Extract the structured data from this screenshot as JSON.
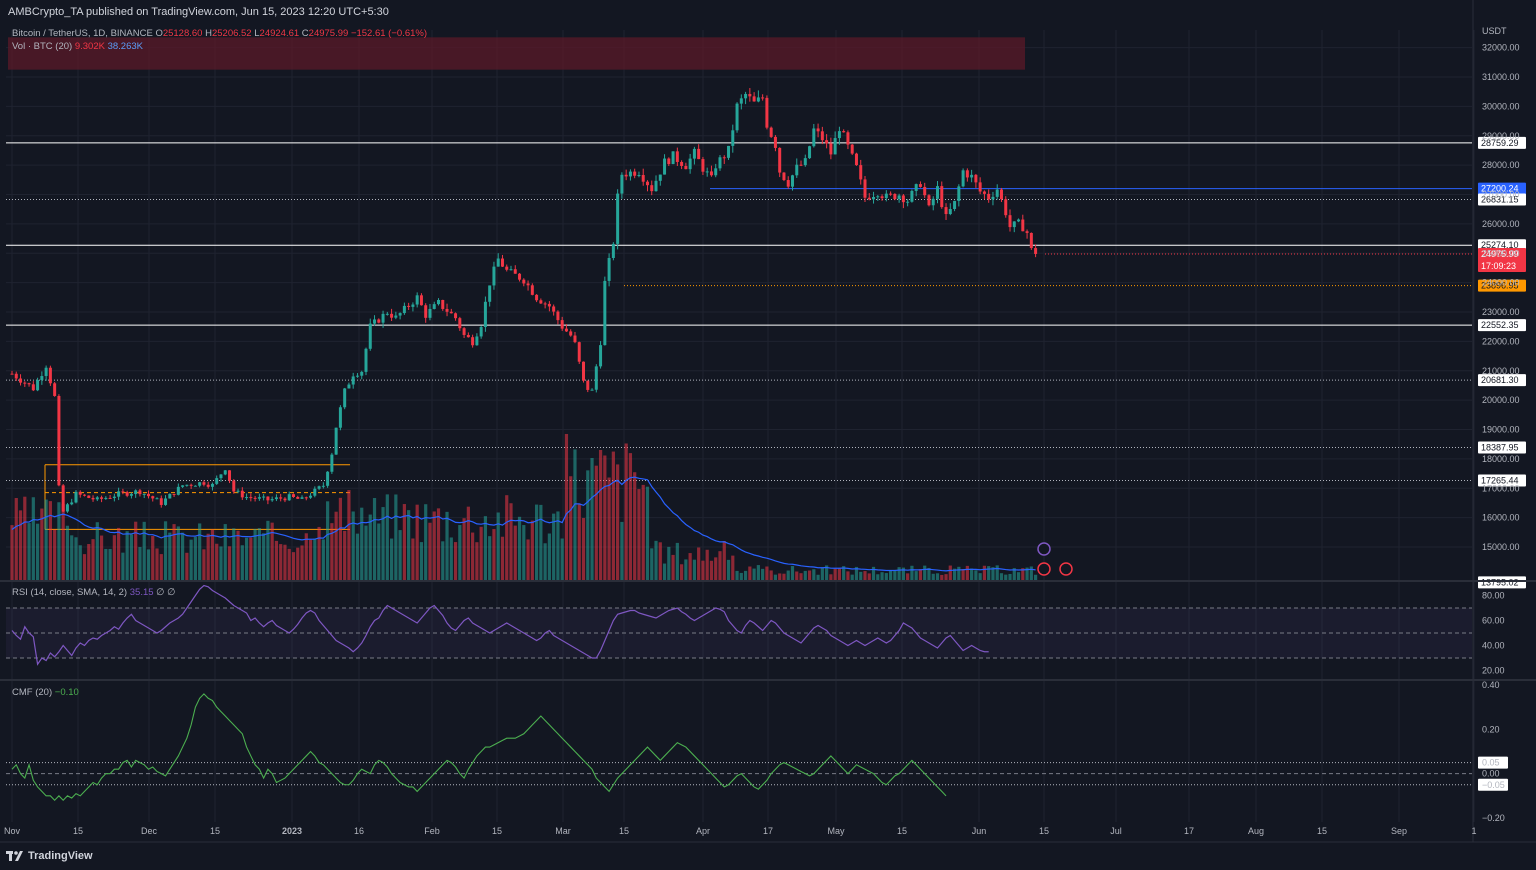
{
  "header": {
    "publisher": "AMBCrypto_TA published on TradingView.com, Jun 15, 2023 12:20 UTC+5:30"
  },
  "legend": {
    "symbol": "Bitcoin / TetherUS, 1D, BINANCE",
    "o_label": "O",
    "o_value": "25128.60",
    "h_label": "H",
    "h_value": "25206.52",
    "l_label": "L",
    "l_value": "24924.61",
    "c_label": "C",
    "c_value": "24975.99",
    "change": "−152.61 (−0.61%)",
    "vol_label": "Vol · BTC (20)",
    "vol_value": "9.302K",
    "vol_ma": "38.263K",
    "rsi_label": "RSI (14, close, SMA, 14, 2)",
    "rsi_value": "35.15",
    "rsi_extra1": "∅",
    "rsi_extra2": "∅",
    "cmf_label": "CMF (20)",
    "cmf_value": "−0.10"
  },
  "footer": {
    "brand": "TradingView"
  },
  "colors": {
    "background": "#131722",
    "up": "#26a69a",
    "down": "#f23645",
    "rsi_line": "#7e57c2",
    "cmf_line": "#4caf50",
    "volume_ma": "#2962ff",
    "level_blue": "#2962ff",
    "level_orange": "#ff9800",
    "supply_zone": "#5b1a28"
  },
  "chart_data": [
    {
      "type": "candlestick",
      "currency_label": "USDT",
      "y_ticks": [
        "32000.00",
        "31000.00",
        "30000.00",
        "29000.00",
        "28000.00",
        "27000.00",
        "26000.00",
        "25000.00",
        "24000.00",
        "23000.00",
        "22000.00",
        "21000.00",
        "20000.00",
        "19000.00",
        "18000.00",
        "17000.00",
        "16000.00",
        "15000.00"
      ],
      "x_ticks": [
        "Nov",
        "15",
        "Dec",
        "15",
        "2023",
        "16",
        "Feb",
        "15",
        "Mar",
        "15",
        "Apr",
        "17",
        "May",
        "15",
        "Jun",
        "15",
        "Jul",
        "17",
        "Aug",
        "15",
        "Sep",
        "1"
      ],
      "ylim": [
        13795.02,
        32500
      ],
      "levels": [
        {
          "value": 28759.29,
          "label": "28759.29",
          "style": "solid",
          "color": "#ffffff"
        },
        {
          "value": 27200.24,
          "label": "27200.24",
          "style": "solid",
          "color": "#2962ff"
        },
        {
          "value": 26831.15,
          "label": "26831.15",
          "style": "dotted",
          "color": "#b2b5be"
        },
        {
          "value": 25274.1,
          "label": "25274.10",
          "style": "solid",
          "color": "#ffffff"
        },
        {
          "value": 23896.95,
          "label": "23896.95",
          "style": "dotted",
          "color": "#ff9800"
        },
        {
          "value": 22552.35,
          "label": "22552.35",
          "style": "solid",
          "color": "#ffffff"
        },
        {
          "value": 20681.3,
          "label": "20681.30",
          "style": "dotted",
          "color": "#b2b5be"
        },
        {
          "value": 18387.95,
          "label": "18387.95",
          "style": "dotted",
          "color": "#b2b5be"
        },
        {
          "value": 17265.44,
          "label": "17265.44",
          "style": "dotted",
          "color": "#b2b5be"
        },
        {
          "value": 13795.02,
          "label": "13795.02",
          "style": "none",
          "color": "#b2b5be"
        }
      ],
      "last_price": {
        "value": 24975.99,
        "label": "24975.99",
        "countdown": "17:09:23"
      },
      "supply_zone": [
        31250,
        32350
      ],
      "range_box": {
        "top": 17800,
        "mid": 16850,
        "bottom": 15600
      },
      "path": [
        [
          0,
          20900
        ],
        [
          5,
          20400
        ],
        [
          8,
          21200
        ],
        [
          10,
          20100
        ],
        [
          11,
          17000
        ],
        [
          12,
          16200
        ],
        [
          15,
          16800
        ],
        [
          20,
          16600
        ],
        [
          25,
          16800
        ],
        [
          30,
          16900
        ],
        [
          35,
          16500
        ],
        [
          40,
          17100
        ],
        [
          45,
          17200
        ],
        [
          47,
          17100
        ],
        [
          50,
          17700
        ],
        [
          52,
          16900
        ],
        [
          55,
          16700
        ],
        [
          60,
          16600
        ],
        [
          65,
          16700
        ],
        [
          68,
          16600
        ],
        [
          70,
          16800
        ],
        [
          73,
          17100
        ],
        [
          75,
          18200
        ],
        [
          76,
          19100
        ],
        [
          78,
          20300
        ],
        [
          80,
          20900
        ],
        [
          82,
          21000
        ],
        [
          84,
          22500
        ],
        [
          88,
          23000
        ],
        [
          90,
          22800
        ],
        [
          95,
          23500
        ],
        [
          97,
          22900
        ],
        [
          100,
          23300
        ],
        [
          104,
          22800
        ],
        [
          106,
          22200
        ],
        [
          108,
          22000
        ],
        [
          110,
          22600
        ],
        [
          112,
          24000
        ],
        [
          114,
          24800
        ],
        [
          116,
          24400
        ],
        [
          120,
          24100
        ],
        [
          123,
          23500
        ],
        [
          126,
          23200
        ],
        [
          129,
          22500
        ],
        [
          131,
          22200
        ],
        [
          132,
          21900
        ],
        [
          134,
          20600
        ],
        [
          135,
          20400
        ],
        [
          136,
          20300
        ],
        [
          138,
          22000
        ],
        [
          139,
          24000
        ],
        [
          140,
          24700
        ],
        [
          141,
          25400
        ],
        [
          142,
          26900
        ],
        [
          143,
          27700
        ],
        [
          147,
          27800
        ],
        [
          150,
          27200
        ],
        [
          153,
          28100
        ],
        [
          155,
          28300
        ],
        [
          158,
          28000
        ],
        [
          160,
          28400
        ],
        [
          162,
          27900
        ],
        [
          164,
          27500
        ],
        [
          165,
          28000
        ],
        [
          168,
          28500
        ],
        [
          170,
          30000
        ],
        [
          172,
          30400
        ],
        [
          174,
          30100
        ],
        [
          176,
          30300
        ],
        [
          177,
          29400
        ],
        [
          179,
          28700
        ],
        [
          180,
          27800
        ],
        [
          182,
          27400
        ],
        [
          184,
          27900
        ],
        [
          186,
          28100
        ],
        [
          188,
          29200
        ],
        [
          190,
          28900
        ],
        [
          192,
          28400
        ],
        [
          194,
          29300
        ],
        [
          196,
          28600
        ],
        [
          198,
          27900
        ],
        [
          200,
          26900
        ],
        [
          203,
          27100
        ],
        [
          205,
          26900
        ],
        [
          208,
          27000
        ],
        [
          210,
          26800
        ],
        [
          213,
          27400
        ],
        [
          215,
          26500
        ],
        [
          217,
          27200
        ],
        [
          219,
          26200
        ],
        [
          221,
          26700
        ],
        [
          223,
          27800
        ],
        [
          225,
          27600
        ],
        [
          227,
          27100
        ],
        [
          229,
          26900
        ],
        [
          231,
          27200
        ],
        [
          233,
          26400
        ],
        [
          234,
          25900
        ],
        [
          236,
          26000
        ],
        [
          237,
          25900
        ],
        [
          238,
          25700
        ],
        [
          239,
          25100
        ],
        [
          240,
          24980
        ]
      ],
      "first_visible_day": -1,
      "projected_days": 365
    },
    {
      "type": "volume",
      "series": [
        {
          "name": "Vol · BTC (20)",
          "values_ratio_desc": "high mid-Nov, Jan, Mar; low from mid-April"
        }
      ]
    },
    {
      "type": "line",
      "title": "RSI (14, close, SMA, 14, 2)",
      "y_ticks": [
        "80.00",
        "60.00",
        "40.00",
        "20.00"
      ],
      "ylim": [
        14,
        90
      ],
      "bands": [
        30,
        50,
        70
      ],
      "values": [
        52,
        48,
        45,
        55,
        50,
        47,
        25,
        30,
        28,
        34,
        31,
        35,
        40,
        36,
        32,
        38,
        42,
        40,
        44,
        46,
        45,
        48,
        50,
        52,
        55,
        53,
        58,
        62,
        65,
        60,
        58,
        56,
        54,
        52,
        50,
        52,
        55,
        58,
        60,
        62,
        65,
        70,
        75,
        80,
        85,
        88,
        87,
        84,
        82,
        80,
        78,
        75,
        72,
        70,
        68,
        66,
        60,
        62,
        58,
        55,
        58,
        60,
        56,
        54,
        52,
        50,
        53,
        57,
        62,
        66,
        68,
        66,
        60,
        56,
        52,
        48,
        44,
        42,
        40,
        38,
        35,
        38,
        42,
        48,
        55,
        60,
        62,
        68,
        72,
        70,
        68,
        66,
        64,
        62,
        60,
        58,
        62,
        66,
        70,
        72,
        68,
        64,
        58,
        54,
        52,
        56,
        60,
        62,
        58,
        56,
        54,
        52,
        50,
        52,
        54,
        56,
        58,
        56,
        54,
        52,
        50,
        48,
        46,
        44,
        46,
        50,
        52,
        48,
        46,
        44,
        42,
        40,
        38,
        36,
        34,
        32,
        30,
        30,
        36,
        44,
        52,
        60,
        65,
        66,
        67,
        68,
        68,
        66,
        65,
        64,
        63,
        62,
        64,
        66,
        68,
        69,
        70,
        67,
        65,
        62,
        60,
        62,
        64,
        66,
        68,
        70,
        69,
        67,
        60,
        56,
        52,
        50,
        56,
        60,
        58,
        55,
        52,
        56,
        60,
        58,
        54,
        50,
        48,
        46,
        44,
        42,
        46,
        50,
        54,
        56,
        54,
        52,
        48,
        46,
        44,
        42,
        40,
        42,
        44,
        42,
        40,
        42,
        44,
        46,
        44,
        42,
        44,
        48,
        52,
        58,
        56,
        54,
        50,
        46,
        44,
        42,
        40,
        38,
        42,
        46,
        48,
        44,
        40,
        36,
        38,
        40,
        38,
        36,
        35,
        35
      ],
      "current_label": "35.15"
    },
    {
      "type": "line",
      "title": "CMF (20)",
      "y_ticks": [
        "0.40",
        "0.20",
        "0.05",
        "0.00",
        "−0.05",
        "−0.20"
      ],
      "ylim": [
        -0.2,
        0.4
      ],
      "levels": [
        0.05,
        0.0,
        -0.05
      ],
      "values": [
        0.02,
        0.04,
        0.0,
        -0.02,
        0.04,
        -0.03,
        -0.06,
        -0.08,
        -0.1,
        -0.1,
        -0.12,
        -0.1,
        -0.12,
        -0.1,
        -0.11,
        -0.09,
        -0.1,
        -0.08,
        -0.06,
        -0.04,
        -0.05,
        -0.02,
        0.0,
        0.0,
        0.02,
        0.02,
        0.05,
        0.06,
        0.03,
        0.06,
        0.05,
        0.04,
        0.02,
        0.03,
        0.01,
        0.0,
        -0.01,
        0.02,
        0.05,
        0.08,
        0.12,
        0.16,
        0.22,
        0.3,
        0.34,
        0.36,
        0.34,
        0.33,
        0.3,
        0.28,
        0.26,
        0.24,
        0.22,
        0.2,
        0.18,
        0.12,
        0.08,
        0.04,
        0.02,
        -0.02,
        0.02,
        0.0,
        -0.04,
        -0.03,
        -0.02,
        0.0,
        0.02,
        0.04,
        0.06,
        0.08,
        0.1,
        0.08,
        0.05,
        0.04,
        0.02,
        0.0,
        -0.02,
        -0.04,
        -0.05,
        -0.05,
        -0.03,
        0.0,
        0.02,
        0.01,
        0.0,
        0.04,
        0.06,
        0.05,
        0.03,
        0.0,
        -0.02,
        -0.04,
        -0.05,
        -0.06,
        -0.06,
        -0.08,
        -0.06,
        -0.04,
        -0.02,
        0.0,
        0.02,
        0.04,
        0.06,
        0.05,
        0.03,
        0.0,
        -0.02,
        0.02,
        0.05,
        0.08,
        0.1,
        0.12,
        0.12,
        0.13,
        0.14,
        0.15,
        0.16,
        0.16,
        0.16,
        0.17,
        0.18,
        0.2,
        0.22,
        0.24,
        0.26,
        0.24,
        0.22,
        0.2,
        0.18,
        0.16,
        0.14,
        0.12,
        0.1,
        0.08,
        0.06,
        0.04,
        0.02,
        -0.02,
        -0.04,
        -0.06,
        -0.08,
        -0.05,
        -0.02,
        0.0,
        0.02,
        0.04,
        0.06,
        0.08,
        0.1,
        0.12,
        0.1,
        0.08,
        0.06,
        0.08,
        0.1,
        0.12,
        0.14,
        0.13,
        0.12,
        0.1,
        0.08,
        0.06,
        0.04,
        0.02,
        0.0,
        -0.02,
        -0.04,
        -0.06,
        -0.05,
        -0.03,
        -0.01,
        0.0,
        -0.02,
        -0.04,
        -0.06,
        -0.07,
        -0.05,
        -0.03,
        0.0,
        0.02,
        0.04,
        0.05,
        0.04,
        0.03,
        0.02,
        0.01,
        0.0,
        -0.01,
        0.0,
        0.02,
        0.04,
        0.06,
        0.08,
        0.06,
        0.04,
        0.02,
        0.0,
        0.02,
        0.04,
        0.03,
        0.02,
        0.01,
        0.0,
        -0.02,
        -0.04,
        -0.05,
        -0.03,
        -0.01,
        0.0,
        0.02,
        0.04,
        0.06,
        0.04,
        0.02,
        0.0,
        -0.02,
        -0.04,
        -0.06,
        -0.08,
        -0.1
      ],
      "current_label": "−0.10"
    }
  ]
}
